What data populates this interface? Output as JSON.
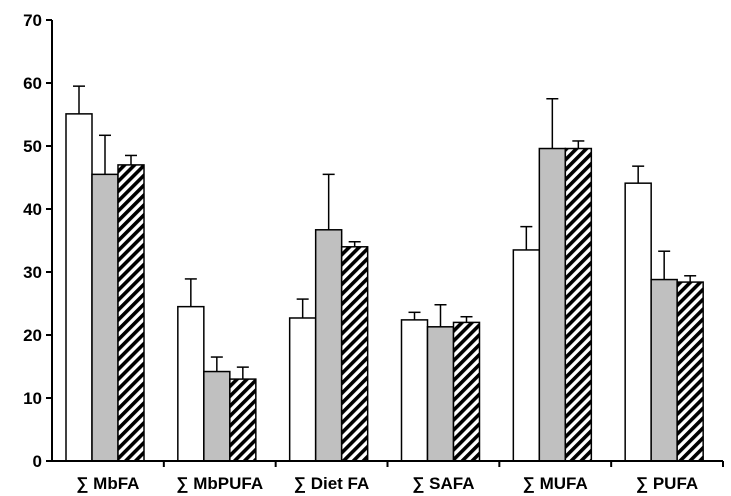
{
  "chart_data": {
    "type": "bar",
    "title": "",
    "xlabel": "",
    "ylabel": "",
    "ylim": [
      0,
      70
    ],
    "yticks": [
      "0",
      "10",
      "20",
      "30",
      "40",
      "50",
      "60",
      "70"
    ],
    "categories": [
      "∑ MbFA",
      "∑ MbPUFA",
      "∑ Diet FA",
      "∑ SAFA",
      "∑ MUFA",
      "∑ PUFA"
    ],
    "series": [
      {
        "fill": "white",
        "color": "#ffffff",
        "values": [
          55.1,
          24.5,
          22.7,
          22.4,
          33.5,
          44.1
        ],
        "errors": [
          4.4,
          4.4,
          3.0,
          1.2,
          3.7,
          2.7
        ]
      },
      {
        "fill": "gray",
        "color": "#c0c0c0",
        "values": [
          45.5,
          14.2,
          36.7,
          21.3,
          49.6,
          28.8
        ],
        "errors": [
          6.2,
          2.3,
          8.8,
          3.5,
          7.9,
          4.5
        ]
      },
      {
        "fill": "hatched",
        "color": "#000000",
        "values": [
          47.0,
          13.0,
          34.0,
          22.0,
          49.6,
          28.4
        ],
        "errors": [
          1.5,
          1.9,
          0.8,
          0.9,
          1.2,
          1.0
        ]
      }
    ],
    "error_bars": true,
    "grid": false,
    "legend": "none"
  }
}
